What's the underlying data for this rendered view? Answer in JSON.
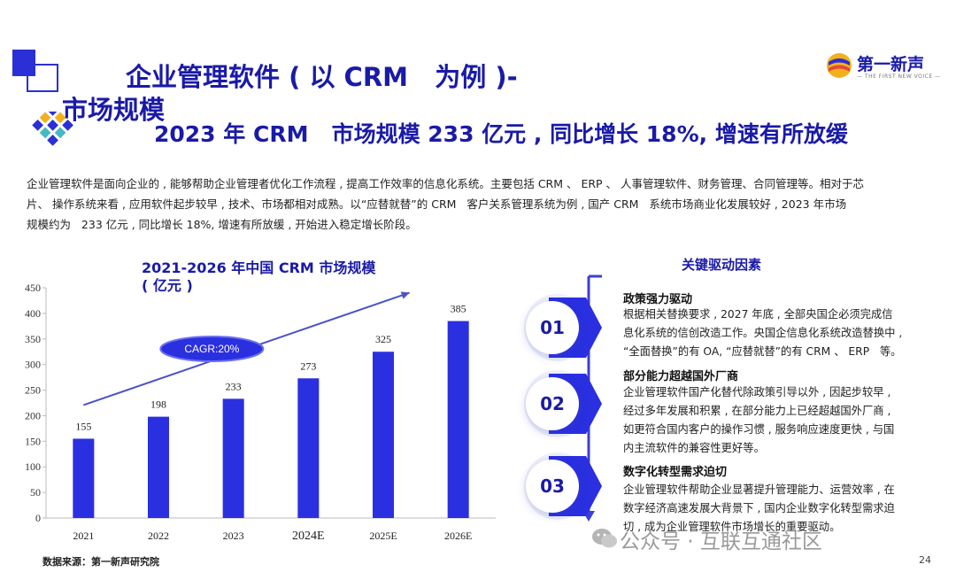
{
  "header": {
    "title_line1": "企业管理软件 ( 以 CRM   为例 )-",
    "title_line2": "市场规模",
    "headline": "2023 年 CRM   市场规模 233 亿元 , 同比增长 18%, 增速有所放缓"
  },
  "brand": {
    "name": "第一新声",
    "sub": "— THE FIRST NEW VOICE —"
  },
  "paragraph": "企业管理软件是面向企业的 , 能够帮助企业管理者优化工作流程 , 提高工作效率的信息化系统。主要包括 CRM 、 ERP 、 人事管理软件、财务管理、合同管理等。相对于芯\n片、 操作系统来看 , 应用软件起步较早 , 技术、市场都相对成熟。以“应替就替”的 CRM   客户关系管理系统为例 , 国产 CRM   系统市场商业化发展较好 , 2023 年市场\n规模约为   233 亿元 , 同比增长 18%, 增速有所放缓 , 开始进入稳定增长阶段。",
  "chart_title_line1": "2021-2026 年中国 CRM 市场规模",
  "chart_title_line2": "( 亿元 )",
  "chart_data": {
    "type": "bar",
    "title": "2021-2026 年中国 CRM 市场规模 ( 亿元 )",
    "categories": [
      "2021",
      "2022",
      "2023",
      "2024E",
      "2025E",
      "2026E"
    ],
    "values": [
      155,
      198,
      233,
      273,
      325,
      385
    ],
    "yticks": [
      "0",
      "50",
      "100",
      "150",
      "200",
      "250",
      "300",
      "350",
      "400",
      "450"
    ],
    "ylim": [
      0,
      450
    ],
    "bar_color": "#2a2fe0",
    "annotation": "CAGR:20%",
    "grid": false
  },
  "source": "数据来源：第一新声研究院",
  "drivers": {
    "title": "关键驱动因素",
    "items": [
      {
        "num": "01",
        "head": "政策强力驱动",
        "body": "根据相关替换要求 , 2027 年底 , 全部央国企必须完成信\n息化系统的信创改造工作。央国企信息化系统改造替换中 ,\n“全面替换”的有 OA, “应替就替”的有 CRM 、 ERP   等。"
      },
      {
        "num": "02",
        "head": "部分能力超越国外厂商",
        "body": "企业管理软件国产化替代除政策引导以外 , 因起步较早 ,\n经过多年发展和积累 , 在部分能力上已经超越国外厂商 ,\n如更符合国内客户的操作习惯 , 服务响应速度更快 , 与国\n内主流软件的兼容性更好等。"
      },
      {
        "num": "03",
        "head": "数字化转型需求迫切",
        "body": "企业管理软件帮助企业显著提升管理能力、运营效率 , 在\n数字经济高速发展大背景下 , 国内企业数字化转型需求迫\n切 , 成为企业管理软件市场增长的重要驱动。"
      }
    ]
  },
  "watermark": "公众号 · 互联互通社区",
  "page_number": "24",
  "colors": {
    "accent": "#1a1aa8",
    "bar": "#2a2fe0",
    "timeline": "#3b3fd8"
  }
}
